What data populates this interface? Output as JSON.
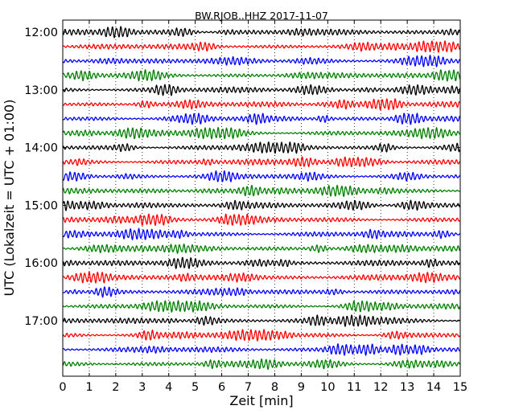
{
  "chart_data": {
    "type": "line",
    "title": "BW.RJOB..HHZ 2017-11-07",
    "xlabel": "Zeit  [min]",
    "ylabel": "UTC (Lokalzeit = UTC + 01:00)",
    "xlim": [
      0,
      15
    ],
    "x_ticks": [
      "0",
      "1",
      "2",
      "3",
      "4",
      "5",
      "6",
      "7",
      "8",
      "9",
      "10",
      "11",
      "12",
      "13",
      "14",
      "15"
    ],
    "y_ticks": [
      "12:00",
      "13:00",
      "14:00",
      "15:00",
      "16:00",
      "17:00"
    ],
    "minutes_per_line": 15,
    "start_time": "12:00",
    "line_count": 24,
    "line_colors": [
      "#000000",
      "#ff0000",
      "#0000ff",
      "#008000"
    ],
    "vertical_grid": "dotted",
    "series": [
      {
        "start": "12:00"
      },
      {
        "start": "12:15"
      },
      {
        "start": "12:30"
      },
      {
        "start": "12:45"
      },
      {
        "start": "13:00"
      },
      {
        "start": "13:15"
      },
      {
        "start": "13:30"
      },
      {
        "start": "13:45"
      },
      {
        "start": "14:00"
      },
      {
        "start": "14:15"
      },
      {
        "start": "14:30"
      },
      {
        "start": "14:45"
      },
      {
        "start": "15:00"
      },
      {
        "start": "15:15"
      },
      {
        "start": "15:30"
      },
      {
        "start": "15:45"
      },
      {
        "start": "16:00"
      },
      {
        "start": "16:15"
      },
      {
        "start": "16:30"
      },
      {
        "start": "16:45"
      },
      {
        "start": "17:00"
      },
      {
        "start": "17:15"
      },
      {
        "start": "17:30"
      },
      {
        "start": "17:45"
      }
    ]
  }
}
